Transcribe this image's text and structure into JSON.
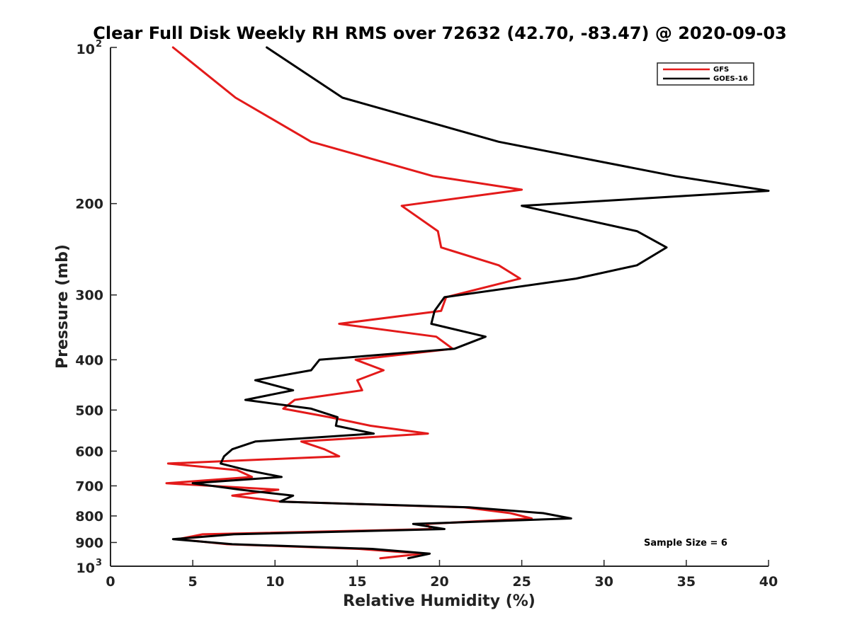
{
  "chart_data": {
    "type": "line",
    "title": "Clear Full Disk Weekly RH RMS over 72632 (42.70, -83.47) @ 2020-09-03",
    "xlabel": "Relative Humidity (%)",
    "ylabel": "Pressure (mb)",
    "xlim": [
      0,
      40
    ],
    "ylim": [
      100,
      1000
    ],
    "y_scale": "log",
    "y_reversed": true,
    "grid": false,
    "legend_position": "top-right",
    "x_ticks": [
      "0",
      "5",
      "10",
      "15",
      "20",
      "25",
      "30",
      "35",
      "40"
    ],
    "y_ticks": [
      {
        "value": 100,
        "base": "10",
        "exp": "2"
      },
      {
        "value": 200,
        "label": "200"
      },
      {
        "value": 300,
        "label": "300"
      },
      {
        "value": 400,
        "label": "400"
      },
      {
        "value": 500,
        "label": "500"
      },
      {
        "value": 600,
        "label": "600"
      },
      {
        "value": 700,
        "label": "700"
      },
      {
        "value": 800,
        "label": "800"
      },
      {
        "value": 900,
        "label": "900"
      },
      {
        "value": 1000,
        "base": "10",
        "exp": "3"
      }
    ],
    "annotation": "Sample Size = 6",
    "series": [
      {
        "name": "GFS",
        "color": "#e31a1a",
        "points": [
          [
            3.8,
            100
          ],
          [
            7.6,
            125
          ],
          [
            12.2,
            152
          ],
          [
            19.6,
            177
          ],
          [
            25.0,
            188
          ],
          [
            17.7,
            202
          ],
          [
            19.9,
            226
          ],
          [
            20.1,
            243
          ],
          [
            23.6,
            263
          ],
          [
            24.9,
            279
          ],
          [
            20.4,
            303
          ],
          [
            20.1,
            322
          ],
          [
            13.9,
            341
          ],
          [
            19.8,
            361
          ],
          [
            20.8,
            381
          ],
          [
            14.9,
            400
          ],
          [
            16.6,
            419
          ],
          [
            15.0,
            438
          ],
          [
            15.3,
            458
          ],
          [
            11.2,
            478
          ],
          [
            10.5,
            497
          ],
          [
            13.3,
            516
          ],
          [
            15.8,
            536
          ],
          [
            19.3,
            555
          ],
          [
            11.6,
            575
          ],
          [
            13.0,
            595
          ],
          [
            13.9,
            614
          ],
          [
            3.5,
            634
          ],
          [
            7.7,
            653
          ],
          [
            8.6,
            673
          ],
          [
            3.4,
            692
          ],
          [
            10.2,
            712
          ],
          [
            7.4,
            731
          ],
          [
            10.4,
            751
          ],
          [
            21.5,
            770
          ],
          [
            24.3,
            790
          ],
          [
            25.6,
            809
          ],
          [
            19.2,
            829
          ],
          [
            19.5,
            848
          ],
          [
            5.6,
            868
          ],
          [
            4.1,
            887
          ],
          [
            7.1,
            907
          ],
          [
            15.1,
            926
          ],
          [
            19.0,
            946
          ],
          [
            16.4,
            965
          ]
        ]
      },
      {
        "name": "GOES-16",
        "color": "#000000",
        "points": [
          [
            9.5,
            100
          ],
          [
            14.1,
            125
          ],
          [
            23.6,
            152
          ],
          [
            34.3,
            177
          ],
          [
            40.0,
            189
          ],
          [
            25.0,
            202
          ],
          [
            32.0,
            226
          ],
          [
            33.8,
            243
          ],
          [
            32.0,
            263
          ],
          [
            28.3,
            279
          ],
          [
            20.3,
            303
          ],
          [
            19.7,
            322
          ],
          [
            19.5,
            341
          ],
          [
            22.8,
            361
          ],
          [
            20.9,
            381
          ],
          [
            12.7,
            400
          ],
          [
            12.2,
            419
          ],
          [
            8.8,
            438
          ],
          [
            11.1,
            458
          ],
          [
            8.2,
            478
          ],
          [
            12.2,
            497
          ],
          [
            13.8,
            516
          ],
          [
            13.7,
            536
          ],
          [
            16.0,
            555
          ],
          [
            8.8,
            575
          ],
          [
            7.4,
            595
          ],
          [
            6.9,
            614
          ],
          [
            6.7,
            634
          ],
          [
            8.3,
            653
          ],
          [
            10.4,
            673
          ],
          [
            5.0,
            692
          ],
          [
            7.9,
            712
          ],
          [
            11.1,
            731
          ],
          [
            10.3,
            751
          ],
          [
            21.8,
            770
          ],
          [
            26.3,
            790
          ],
          [
            28.0,
            809
          ],
          [
            18.4,
            829
          ],
          [
            20.3,
            848
          ],
          [
            7.5,
            868
          ],
          [
            3.8,
            887
          ],
          [
            7.4,
            907
          ],
          [
            15.9,
            926
          ],
          [
            19.4,
            946
          ],
          [
            18.1,
            965
          ]
        ]
      }
    ]
  }
}
